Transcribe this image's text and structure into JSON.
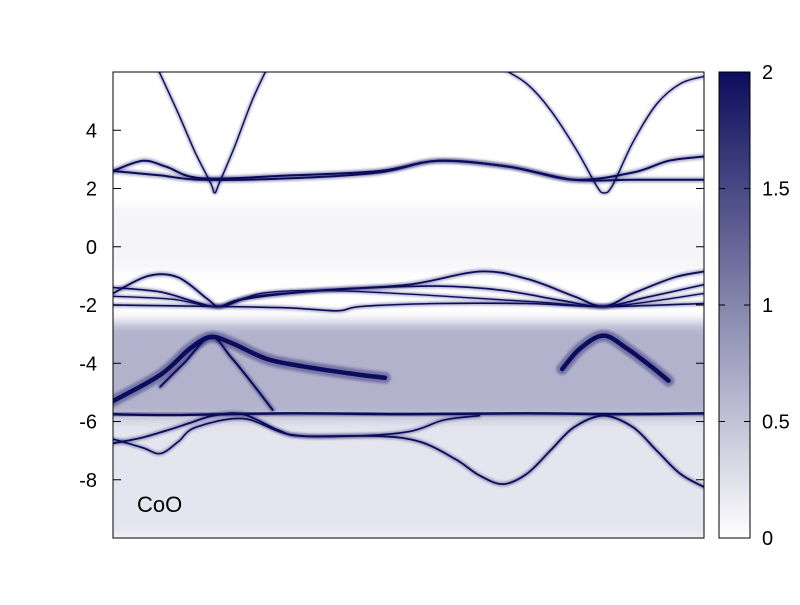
{
  "chart_data": {
    "type": "heatmap",
    "title": "",
    "xlabel": "",
    "ylabel": "",
    "ylim": [
      -10,
      6
    ],
    "xlim": [
      0,
      1
    ],
    "ytick_values": [
      4,
      2,
      0,
      -2,
      -4,
      -6,
      -8
    ],
    "ytick_labels": [
      "4",
      "2",
      "0",
      "-2",
      "-4",
      "-6",
      "-8"
    ],
    "annotation": "CoO",
    "colorbar": {
      "range": [
        0,
        2
      ],
      "tick_values": [
        2,
        1.5,
        1,
        0.5,
        0
      ],
      "tick_labels": [
        "2",
        "1.5",
        "1",
        "0.5",
        "0"
      ],
      "color_low": "#ffffff",
      "color_high": "#0c0c5c"
    },
    "bands": [
      {
        "name": "c1",
        "width": 1.4,
        "points": [
          [
            0.076,
            6.1
          ],
          [
            0.11,
            4.6
          ],
          [
            0.14,
            3.2
          ],
          [
            0.165,
            2.2
          ],
          [
            0.172,
            1.85
          ],
          [
            0.18,
            2.2
          ],
          [
            0.205,
            3.4
          ],
          [
            0.235,
            5.0
          ],
          [
            0.26,
            6.1
          ]
        ]
      },
      {
        "name": "c2",
        "width": 1.4,
        "points": [
          [
            0.66,
            6.1
          ],
          [
            0.7,
            5.6
          ],
          [
            0.74,
            4.7
          ],
          [
            0.785,
            3.3
          ],
          [
            0.818,
            2.1
          ],
          [
            0.83,
            1.85
          ],
          [
            0.845,
            2.1
          ],
          [
            0.88,
            3.6
          ],
          [
            0.92,
            4.9
          ],
          [
            0.96,
            5.6
          ],
          [
            1.0,
            5.85
          ]
        ]
      },
      {
        "name": "c3",
        "width": 2.0,
        "points": [
          [
            0.0,
            2.6
          ],
          [
            0.05,
            2.95
          ],
          [
            0.09,
            2.75
          ],
          [
            0.15,
            2.35
          ],
          [
            0.3,
            2.45
          ],
          [
            0.45,
            2.6
          ],
          [
            0.55,
            2.95
          ],
          [
            0.67,
            2.75
          ],
          [
            0.78,
            2.3
          ],
          [
            0.88,
            2.55
          ],
          [
            0.94,
            2.95
          ],
          [
            1.0,
            3.1
          ]
        ]
      },
      {
        "name": "c4",
        "width": 2.0,
        "points": [
          [
            0.0,
            2.6
          ],
          [
            0.08,
            2.45
          ],
          [
            0.15,
            2.3
          ],
          [
            0.3,
            2.35
          ],
          [
            0.45,
            2.55
          ],
          [
            0.55,
            2.95
          ],
          [
            0.67,
            2.75
          ],
          [
            0.78,
            2.3
          ],
          [
            0.88,
            2.3
          ],
          [
            1.0,
            2.3
          ]
        ]
      },
      {
        "name": "v1",
        "width": 1.8,
        "points": [
          [
            0.0,
            -1.6
          ],
          [
            0.06,
            -1.0
          ],
          [
            0.11,
            -1.05
          ],
          [
            0.16,
            -1.8
          ],
          [
            0.18,
            -2.05
          ],
          [
            0.22,
            -1.8
          ],
          [
            0.35,
            -1.5
          ],
          [
            0.5,
            -1.3
          ],
          [
            0.62,
            -0.85
          ],
          [
            0.7,
            -1.1
          ],
          [
            0.78,
            -1.7
          ],
          [
            0.83,
            -2.05
          ],
          [
            0.88,
            -1.6
          ],
          [
            0.95,
            -1.05
          ],
          [
            1.0,
            -0.85
          ]
        ]
      },
      {
        "name": "v2",
        "width": 1.6,
        "points": [
          [
            0.0,
            -1.4
          ],
          [
            0.08,
            -1.55
          ],
          [
            0.14,
            -1.9
          ],
          [
            0.18,
            -2.05
          ],
          [
            0.24,
            -1.7
          ],
          [
            0.4,
            -1.45
          ],
          [
            0.55,
            -1.35
          ],
          [
            0.66,
            -1.5
          ],
          [
            0.76,
            -1.85
          ],
          [
            0.83,
            -2.05
          ],
          [
            0.9,
            -1.75
          ],
          [
            1.0,
            -1.3
          ]
        ]
      },
      {
        "name": "v3",
        "width": 1.6,
        "points": [
          [
            0.0,
            -2.0
          ],
          [
            0.18,
            -2.05
          ],
          [
            0.3,
            -2.1
          ],
          [
            0.38,
            -2.2
          ],
          [
            0.42,
            -2.05
          ],
          [
            0.55,
            -1.95
          ],
          [
            0.7,
            -1.95
          ],
          [
            0.83,
            -2.05
          ],
          [
            1.0,
            -1.95
          ]
        ]
      },
      {
        "name": "v4",
        "width": 1.4,
        "points": [
          [
            0.0,
            -1.7
          ],
          [
            0.1,
            -1.8
          ],
          [
            0.18,
            -2.05
          ],
          [
            0.25,
            -1.6
          ],
          [
            0.35,
            -1.5
          ],
          [
            0.48,
            -1.6
          ],
          [
            0.6,
            -1.75
          ],
          [
            0.72,
            -1.9
          ],
          [
            0.83,
            -2.05
          ],
          [
            0.92,
            -1.85
          ],
          [
            1.0,
            -1.6
          ]
        ]
      },
      {
        "name": "d1",
        "width": 4.5,
        "points": [
          [
            0.0,
            -5.3
          ],
          [
            0.08,
            -4.4
          ],
          [
            0.13,
            -3.5
          ],
          [
            0.165,
            -3.1
          ],
          [
            0.2,
            -3.3
          ],
          [
            0.26,
            -3.85
          ],
          [
            0.32,
            -4.1
          ],
          [
            0.4,
            -4.35
          ],
          [
            0.46,
            -4.5
          ]
        ]
      },
      {
        "name": "d2",
        "width": 4.5,
        "points": [
          [
            0.76,
            -4.2
          ],
          [
            0.79,
            -3.5
          ],
          [
            0.83,
            -3.05
          ],
          [
            0.87,
            -3.5
          ],
          [
            0.91,
            -4.1
          ],
          [
            0.94,
            -4.6
          ]
        ]
      },
      {
        "name": "d3",
        "width": 2.0,
        "points": [
          [
            0.08,
            -4.8
          ],
          [
            0.12,
            -4.0
          ],
          [
            0.165,
            -3.1
          ],
          [
            0.2,
            -3.8
          ],
          [
            0.24,
            -4.8
          ],
          [
            0.27,
            -5.6
          ]
        ]
      },
      {
        "name": "f1",
        "width": 2.4,
        "points": [
          [
            0.0,
            -5.75
          ],
          [
            0.1,
            -5.78
          ],
          [
            0.3,
            -5.72
          ],
          [
            0.5,
            -5.75
          ],
          [
            0.7,
            -5.72
          ],
          [
            0.85,
            -5.75
          ],
          [
            1.0,
            -5.72
          ]
        ]
      },
      {
        "name": "l1",
        "width": 1.8,
        "points": [
          [
            0.0,
            -6.75
          ],
          [
            0.05,
            -6.55
          ],
          [
            0.1,
            -6.25
          ],
          [
            0.13,
            -6.05
          ],
          [
            0.17,
            -5.8
          ],
          [
            0.22,
            -5.75
          ],
          [
            0.28,
            -6.3
          ],
          [
            0.32,
            -6.5
          ],
          [
            0.45,
            -6.5
          ],
          [
            0.52,
            -6.7
          ],
          [
            0.58,
            -7.3
          ],
          [
            0.62,
            -7.85
          ],
          [
            0.66,
            -8.15
          ],
          [
            0.7,
            -7.8
          ],
          [
            0.74,
            -7.0
          ],
          [
            0.78,
            -6.2
          ],
          [
            0.83,
            -5.8
          ],
          [
            0.88,
            -6.2
          ],
          [
            0.92,
            -7.0
          ],
          [
            0.96,
            -7.8
          ],
          [
            1.0,
            -8.25
          ]
        ]
      },
      {
        "name": "l2",
        "width": 1.6,
        "points": [
          [
            0.0,
            -6.6
          ],
          [
            0.05,
            -6.9
          ],
          [
            0.08,
            -7.1
          ],
          [
            0.11,
            -6.7
          ],
          [
            0.14,
            -6.2
          ],
          [
            0.22,
            -5.9
          ],
          [
            0.3,
            -6.45
          ],
          [
            0.4,
            -6.5
          ],
          [
            0.5,
            -6.35
          ],
          [
            0.56,
            -5.95
          ],
          [
            0.62,
            -5.8
          ]
        ]
      }
    ],
    "diffuse_regions": [
      {
        "name": "valence-continuum",
        "y_from": -5.9,
        "y_to": -2.6,
        "level": 0.3
      },
      {
        "name": "lower-continuum",
        "y_from": -10,
        "y_to": -5.9,
        "level": 0.1
      },
      {
        "name": "gap-haze",
        "y_from": -0.8,
        "y_to": 1.4,
        "level": 0.04
      }
    ]
  }
}
